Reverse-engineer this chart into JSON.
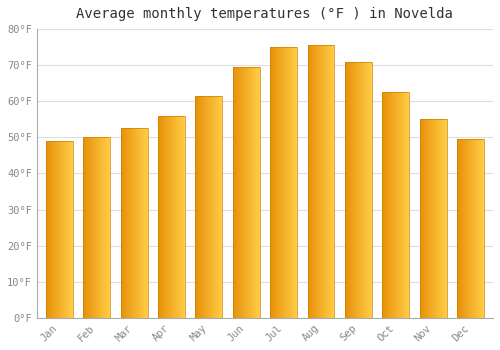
{
  "title": "Average monthly temperatures (°F ) in Novelda",
  "months": [
    "Jan",
    "Feb",
    "Mar",
    "Apr",
    "May",
    "Jun",
    "Jul",
    "Aug",
    "Sep",
    "Oct",
    "Nov",
    "Dec"
  ],
  "values": [
    49,
    50,
    52.5,
    56,
    61.5,
    69.5,
    75,
    75.5,
    71,
    62.5,
    55,
    49.5
  ],
  "bar_color_left": "#E8900A",
  "bar_color_mid": "#FFB833",
  "bar_color_right": "#FFD060",
  "ylim": [
    0,
    80
  ],
  "yticks": [
    0,
    10,
    20,
    30,
    40,
    50,
    60,
    70,
    80
  ],
  "ytick_labels": [
    "0°F",
    "10°F",
    "20°F",
    "30°F",
    "40°F",
    "50°F",
    "60°F",
    "70°F",
    "80°F"
  ],
  "grid_color": "#dddddd",
  "background_color": "#ffffff",
  "title_fontsize": 10,
  "tick_fontsize": 7.5,
  "font_family": "monospace"
}
